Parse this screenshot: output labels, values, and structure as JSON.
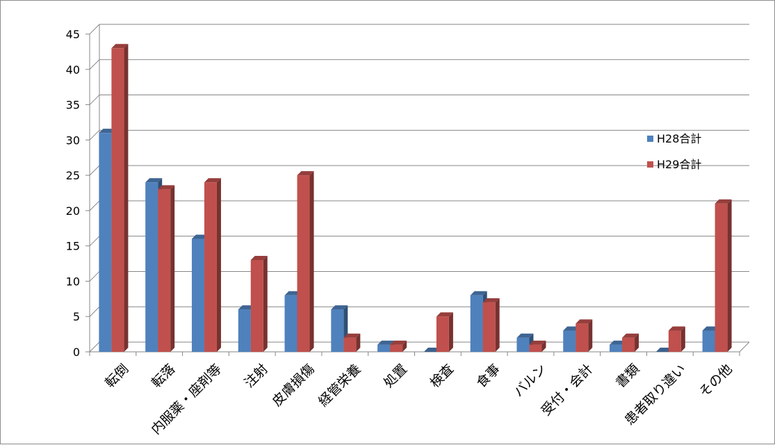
{
  "chart_data": {
    "type": "bar",
    "categories": [
      "転倒",
      "転落",
      "内服薬・座剤等",
      "注射",
      "皮膚損傷",
      "経管栄養",
      "処置",
      "検査",
      "食事",
      "バルン",
      "受付・会計",
      "書類",
      "患者取り違い",
      "その他"
    ],
    "series": [
      {
        "name": "H28合計",
        "values": [
          31,
          24,
          16,
          6,
          8,
          6,
          1,
          0,
          8,
          2,
          3,
          1,
          0,
          3
        ],
        "color": "#4f81bd"
      },
      {
        "name": "H29合計",
        "values": [
          43,
          23,
          24,
          13,
          25,
          2,
          1,
          5,
          7,
          1,
          4,
          2,
          3,
          21
        ],
        "color": "#c0504d"
      }
    ],
    "ylim": [
      0,
      45
    ],
    "yticks": [
      "0",
      "5",
      "10",
      "15",
      "20",
      "25",
      "30",
      "35",
      "40",
      "45"
    ],
    "grid": true,
    "legend": "right",
    "bar_style": "3d"
  }
}
